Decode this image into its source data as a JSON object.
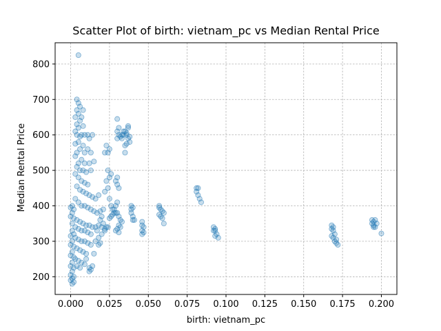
{
  "chart_data": {
    "type": "scatter",
    "title": "Scatter Plot of birth: vietnam_pc vs Median Rental Price",
    "xlabel": "birth: vietnam_pc",
    "ylabel": "Median Rental Price",
    "xlim": [
      -0.01,
      0.21
    ],
    "ylim": [
      150,
      860
    ],
    "xticks": [
      0.0,
      0.025,
      0.05,
      0.075,
      0.1,
      0.125,
      0.15,
      0.175,
      0.2
    ],
    "xtick_labels": [
      "0.000",
      "0.025",
      "0.050",
      "0.075",
      "0.100",
      "0.125",
      "0.150",
      "0.175",
      "0.200"
    ],
    "yticks": [
      200,
      300,
      400,
      500,
      600,
      700,
      800
    ],
    "ytick_labels": [
      "200",
      "300",
      "400",
      "500",
      "600",
      "700",
      "800"
    ],
    "grid": true,
    "point_color": "#1f77b4",
    "point_opacity": 0.25,
    "points": [
      [
        0.005,
        825
      ],
      [
        0.004,
        700
      ],
      [
        0.005,
        690
      ],
      [
        0.006,
        680
      ],
      [
        0.004,
        670
      ],
      [
        0.008,
        670
      ],
      [
        0.005,
        660
      ],
      [
        0.007,
        650
      ],
      [
        0.003,
        650
      ],
      [
        0.006,
        640
      ],
      [
        0.004,
        630
      ],
      [
        0.008,
        625
      ],
      [
        0.005,
        620
      ],
      [
        0.003,
        610
      ],
      [
        0.007,
        600
      ],
      [
        0.004,
        600
      ],
      [
        0.006,
        595
      ],
      [
        0.009,
        600
      ],
      [
        0.011,
        600
      ],
      [
        0.014,
        600
      ],
      [
        0.012,
        590
      ],
      [
        0.005,
        580
      ],
      [
        0.003,
        575
      ],
      [
        0.008,
        570
      ],
      [
        0.006,
        560
      ],
      [
        0.004,
        550
      ],
      [
        0.009,
        550
      ],
      [
        0.011,
        560
      ],
      [
        0.013,
        550
      ],
      [
        0.003,
        540
      ],
      [
        0.007,
        530
      ],
      [
        0.005,
        520
      ],
      [
        0.009,
        520
      ],
      [
        0.012,
        520
      ],
      [
        0.015,
        525
      ],
      [
        0.004,
        510
      ],
      [
        0.006,
        500
      ],
      [
        0.008,
        500
      ],
      [
        0.01,
        495
      ],
      [
        0.013,
        500
      ],
      [
        0.003,
        490
      ],
      [
        0.005,
        480
      ],
      [
        0.007,
        470
      ],
      [
        0.009,
        465
      ],
      [
        0.011,
        460
      ],
      [
        0.004,
        455
      ],
      [
        0.006,
        445
      ],
      [
        0.008,
        440
      ],
      [
        0.01,
        435
      ],
      [
        0.012,
        430
      ],
      [
        0.014,
        425
      ],
      [
        0.016,
        420
      ],
      [
        0.018,
        430
      ],
      [
        0.003,
        420
      ],
      [
        0.005,
        410
      ],
      [
        0.007,
        400
      ],
      [
        0.009,
        400
      ],
      [
        0.011,
        395
      ],
      [
        0.013,
        390
      ],
      [
        0.015,
        385
      ],
      [
        0.017,
        380
      ],
      [
        0.019,
        385
      ],
      [
        0.021,
        390
      ],
      [
        0.001,
        400
      ],
      [
        0.0,
        395
      ],
      [
        0.002,
        390
      ],
      [
        0.001,
        380
      ],
      [
        0.0,
        370
      ],
      [
        0.002,
        365
      ],
      [
        0.004,
        360
      ],
      [
        0.006,
        355
      ],
      [
        0.008,
        350
      ],
      [
        0.01,
        345
      ],
      [
        0.012,
        345
      ],
      [
        0.014,
        340
      ],
      [
        0.016,
        340
      ],
      [
        0.018,
        345
      ],
      [
        0.02,
        340
      ],
      [
        0.022,
        335
      ],
      [
        0.024,
        340
      ],
      [
        0.001,
        350
      ],
      [
        0.003,
        340
      ],
      [
        0.005,
        335
      ],
      [
        0.007,
        330
      ],
      [
        0.009,
        330
      ],
      [
        0.011,
        325
      ],
      [
        0.013,
        320
      ],
      [
        0.001,
        330
      ],
      [
        0.002,
        320
      ],
      [
        0.0,
        315
      ],
      [
        0.003,
        310
      ],
      [
        0.005,
        305
      ],
      [
        0.007,
        300
      ],
      [
        0.009,
        300
      ],
      [
        0.011,
        295
      ],
      [
        0.013,
        290
      ],
      [
        0.001,
        300
      ],
      [
        0.0,
        290
      ],
      [
        0.002,
        285
      ],
      [
        0.004,
        280
      ],
      [
        0.006,
        275
      ],
      [
        0.008,
        270
      ],
      [
        0.01,
        265
      ],
      [
        0.001,
        270
      ],
      [
        0.0,
        260
      ],
      [
        0.002,
        255
      ],
      [
        0.003,
        250
      ],
      [
        0.005,
        245
      ],
      [
        0.007,
        240
      ],
      [
        0.009,
        235
      ],
      [
        0.001,
        240
      ],
      [
        0.0,
        230
      ],
      [
        0.002,
        225
      ],
      [
        0.001,
        215
      ],
      [
        0.0,
        205
      ],
      [
        0.002,
        200
      ],
      [
        0.001,
        195
      ],
      [
        0.0,
        190
      ],
      [
        0.002,
        185
      ],
      [
        0.001,
        180
      ],
      [
        0.004,
        230
      ],
      [
        0.006,
        225
      ],
      [
        0.012,
        225
      ],
      [
        0.013,
        220
      ],
      [
        0.012,
        215
      ],
      [
        0.014,
        230
      ],
      [
        0.01,
        250
      ],
      [
        0.015,
        265
      ],
      [
        0.016,
        300
      ],
      [
        0.018,
        310
      ],
      [
        0.02,
        320
      ],
      [
        0.017,
        330
      ],
      [
        0.019,
        360
      ],
      [
        0.02,
        370
      ],
      [
        0.018,
        290
      ],
      [
        0.019,
        295
      ],
      [
        0.021,
        350
      ],
      [
        0.022,
        330
      ],
      [
        0.023,
        340
      ],
      [
        0.024,
        550
      ],
      [
        0.023,
        570
      ],
      [
        0.025,
        560
      ],
      [
        0.022,
        550
      ],
      [
        0.024,
        500
      ],
      [
        0.026,
        490
      ],
      [
        0.025,
        480
      ],
      [
        0.023,
        470
      ],
      [
        0.024,
        450
      ],
      [
        0.022,
        440
      ],
      [
        0.025,
        420
      ],
      [
        0.026,
        400
      ],
      [
        0.027,
        390
      ],
      [
        0.028,
        380
      ],
      [
        0.029,
        400
      ],
      [
        0.03,
        410
      ],
      [
        0.028,
        390
      ],
      [
        0.027,
        375
      ],
      [
        0.026,
        370
      ],
      [
        0.025,
        365
      ],
      [
        0.029,
        380
      ],
      [
        0.03,
        380
      ],
      [
        0.031,
        370
      ],
      [
        0.032,
        360
      ],
      [
        0.033,
        355
      ],
      [
        0.031,
        345
      ],
      [
        0.032,
        340
      ],
      [
        0.03,
        335
      ],
      [
        0.029,
        330
      ],
      [
        0.031,
        325
      ],
      [
        0.03,
        480
      ],
      [
        0.029,
        470
      ],
      [
        0.03,
        460
      ],
      [
        0.031,
        450
      ],
      [
        0.03,
        645
      ],
      [
        0.031,
        620
      ],
      [
        0.03,
        610
      ],
      [
        0.031,
        600
      ],
      [
        0.032,
        595
      ],
      [
        0.033,
        590
      ],
      [
        0.03,
        590
      ],
      [
        0.034,
        600
      ],
      [
        0.035,
        610
      ],
      [
        0.036,
        600
      ],
      [
        0.037,
        625
      ],
      [
        0.037,
        620
      ],
      [
        0.036,
        605
      ],
      [
        0.037,
        590
      ],
      [
        0.038,
        580
      ],
      [
        0.036,
        575
      ],
      [
        0.035,
        570
      ],
      [
        0.035,
        550
      ],
      [
        0.033,
        600
      ],
      [
        0.034,
        610
      ],
      [
        0.038,
        595
      ],
      [
        0.039,
        400
      ],
      [
        0.039,
        390
      ],
      [
        0.04,
        395
      ],
      [
        0.039,
        380
      ],
      [
        0.04,
        370
      ],
      [
        0.041,
        360
      ],
      [
        0.04,
        360
      ],
      [
        0.046,
        355
      ],
      [
        0.046,
        345
      ],
      [
        0.047,
        340
      ],
      [
        0.046,
        330
      ],
      [
        0.047,
        325
      ],
      [
        0.046,
        320
      ],
      [
        0.057,
        400
      ],
      [
        0.057,
        395
      ],
      [
        0.058,
        390
      ],
      [
        0.059,
        385
      ],
      [
        0.06,
        380
      ],
      [
        0.057,
        375
      ],
      [
        0.058,
        370
      ],
      [
        0.059,
        365
      ],
      [
        0.06,
        350
      ],
      [
        0.081,
        450
      ],
      [
        0.082,
        450
      ],
      [
        0.081,
        440
      ],
      [
        0.082,
        430
      ],
      [
        0.083,
        420
      ],
      [
        0.084,
        410
      ],
      [
        0.092,
        340
      ],
      [
        0.093,
        335
      ],
      [
        0.092,
        330
      ],
      [
        0.093,
        330
      ],
      [
        0.094,
        320
      ],
      [
        0.093,
        315
      ],
      [
        0.095,
        310
      ],
      [
        0.168,
        345
      ],
      [
        0.169,
        340
      ],
      [
        0.168,
        335
      ],
      [
        0.169,
        330
      ],
      [
        0.17,
        320
      ],
      [
        0.168,
        315
      ],
      [
        0.169,
        310
      ],
      [
        0.17,
        300
      ],
      [
        0.171,
        295
      ],
      [
        0.172,
        290
      ],
      [
        0.171,
        305
      ],
      [
        0.194,
        360
      ],
      [
        0.195,
        355
      ],
      [
        0.196,
        360
      ],
      [
        0.194,
        350
      ],
      [
        0.195,
        345
      ],
      [
        0.196,
        340
      ],
      [
        0.195,
        340
      ],
      [
        0.197,
        350
      ],
      [
        0.2,
        322
      ]
    ]
  }
}
